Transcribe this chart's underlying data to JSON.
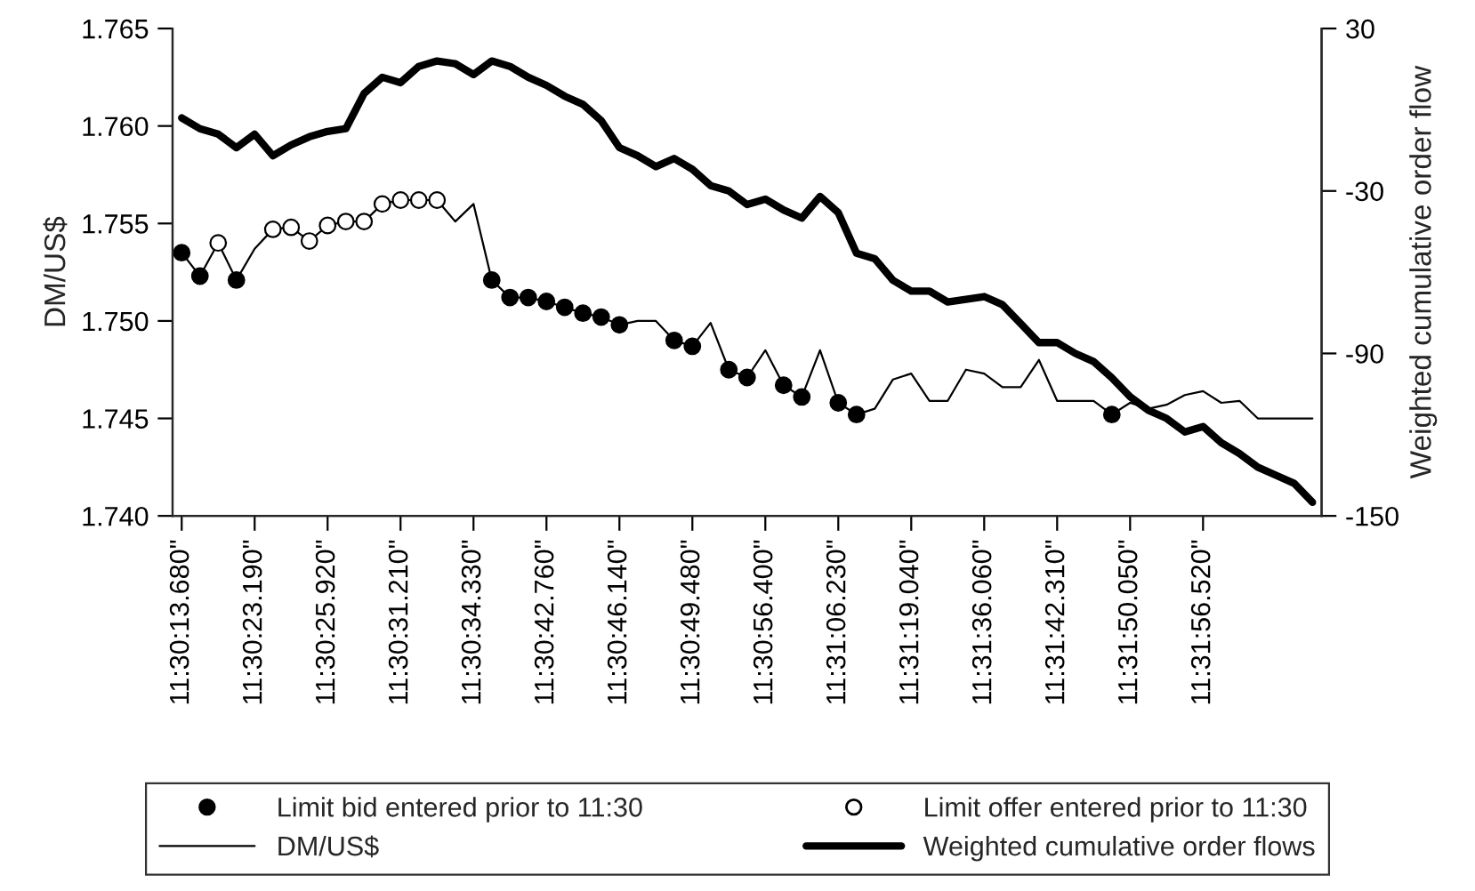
{
  "chart_data": {
    "type": "line",
    "ylabel": "DM/US$",
    "y2label": "Weighted cumulative order flow",
    "categories": [
      "11:30:13.680\"",
      null,
      null,
      null,
      "11:30:23.190\"",
      null,
      null,
      null,
      "11:30:25.920\"",
      null,
      null,
      null,
      "11:30:31.210\"",
      null,
      null,
      null,
      "11:30:34.330\"",
      null,
      null,
      null,
      "11:30:42.760\"",
      null,
      null,
      null,
      "11:30:46.140\"",
      null,
      null,
      null,
      "11:30:49.480\"",
      null,
      null,
      null,
      "11:30:56.400\"",
      null,
      null,
      null,
      "11:31:06.230\"",
      null,
      null,
      null,
      "11:31:19.040\"",
      null,
      null,
      null,
      "11:31:36.060\"",
      null,
      null,
      null,
      "11:31:42.310\"",
      null,
      null,
      null,
      "11:31:50.050\"",
      null,
      null,
      null,
      "11:31:56.520\"",
      null,
      null,
      null,
      null,
      null,
      null
    ],
    "series": [
      {
        "name": "Limit bid entered prior to 11:30",
        "type": "scatter",
        "marker": "circle",
        "color": "#000000",
        "values": [
          1.7535,
          1.7523,
          null,
          1.7521,
          null,
          null,
          null,
          null,
          null,
          null,
          null,
          null,
          null,
          null,
          null,
          null,
          null,
          1.7521,
          1.7512,
          1.7512,
          1.751,
          1.7507,
          1.7504,
          1.7502,
          1.7498,
          null,
          null,
          1.749,
          1.7487,
          null,
          1.7475,
          1.7471,
          null,
          1.7467,
          1.7461,
          null,
          1.7458,
          1.7452,
          null,
          null,
          null,
          null,
          null,
          null,
          null,
          null,
          null,
          null,
          null,
          null,
          null,
          1.7452,
          null,
          null,
          null,
          null,
          null,
          null,
          null,
          null,
          null,
          null,
          null
        ]
      },
      {
        "name": "Limit offer entered prior to 11:30",
        "type": "scatter",
        "marker": "circle",
        "color": "#ffffff",
        "values": [
          null,
          null,
          1.754,
          null,
          null,
          1.7547,
          1.7548,
          1.7541,
          1.7549,
          1.7551,
          1.7551,
          1.756,
          1.7562,
          1.7562,
          1.7562,
          null,
          null,
          null,
          null,
          null,
          null,
          null,
          null,
          null,
          null,
          null,
          null,
          null,
          null,
          null,
          null,
          null,
          null,
          null,
          null,
          null,
          null,
          null,
          null,
          null,
          null,
          null,
          null,
          null,
          null,
          null,
          null,
          null,
          null,
          null,
          null,
          null,
          null,
          null,
          null,
          null,
          null,
          null,
          null,
          null,
          null,
          null,
          null
        ]
      },
      {
        "name": "DM/US$",
        "marker": "none",
        "color": "#000000",
        "values": [
          1.7535,
          1.7523,
          1.754,
          1.7521,
          1.7537,
          1.7547,
          1.7548,
          1.7541,
          1.7549,
          1.7551,
          1.7551,
          1.756,
          1.7562,
          1.7562,
          1.7562,
          1.7551,
          1.756,
          1.7521,
          1.7512,
          1.7512,
          1.751,
          1.7507,
          1.7504,
          1.7502,
          1.7498,
          1.75,
          1.75,
          1.749,
          1.7487,
          1.7499,
          1.7475,
          1.7471,
          1.7485,
          1.7467,
          1.7461,
          1.7485,
          1.7458,
          1.7452,
          1.7455,
          1.747,
          1.7473,
          1.7459,
          1.7459,
          1.7475,
          1.7473,
          1.7466,
          1.7466,
          1.748,
          1.7459,
          1.7459,
          1.7459,
          1.7452,
          1.7458,
          1.7455,
          1.7457,
          1.7462,
          1.7464,
          1.7458,
          1.7459,
          1.745,
          1.745,
          1.745,
          1.745
        ]
      },
      {
        "name": "Weighted cumulative order flows",
        "marker": "none",
        "axis": "y2",
        "color": "#000000",
        "values": [
          -3,
          -7,
          -9,
          -14,
          -9,
          -17,
          -13,
          -10,
          -8,
          -7,
          6,
          12,
          10,
          16,
          18,
          17,
          13,
          18,
          16,
          12,
          9,
          5,
          2,
          -4,
          -14,
          -17,
          -21,
          -18,
          -22,
          -28,
          -30,
          -35,
          -33,
          -37,
          -40,
          -32,
          -38,
          -53,
          -55,
          -63,
          -67,
          -67,
          -71,
          -70,
          -69,
          -72,
          -79,
          -86,
          -86,
          -90,
          -93,
          -99,
          -106,
          -111,
          -114,
          -119,
          -117,
          -123,
          -127,
          -132,
          -135,
          -138,
          -145
        ]
      }
    ],
    "ylim": [
      1.74,
      1.765
    ],
    "yticks": [
      {
        "value": 1.74,
        "label": "1.740"
      },
      {
        "value": 1.745,
        "label": "1.745"
      },
      {
        "value": 1.75,
        "label": "1.750"
      },
      {
        "value": 1.755,
        "label": "1.755"
      },
      {
        "value": 1.76,
        "label": "1.760"
      },
      {
        "value": 1.765,
        "label": "1.765"
      }
    ],
    "y2lim": [
      -150,
      30
    ],
    "y2ticks": [
      -150,
      -90,
      -30,
      30
    ],
    "line_style": "solid",
    "grid": false,
    "legend": "bottom"
  }
}
